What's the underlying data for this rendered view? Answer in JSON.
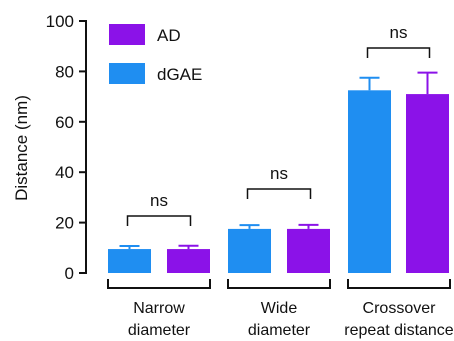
{
  "chart_data": {
    "type": "bar",
    "ylabel": "Distance  (nm)",
    "ylim": [
      0,
      100
    ],
    "yticks": [
      0,
      20,
      40,
      60,
      80,
      100
    ],
    "categories": [
      {
        "line1": "Narrow",
        "line2": "diameter"
      },
      {
        "line1": "Wide",
        "line2": "diameter"
      },
      {
        "line1": "Crossover",
        "line2": "repeat distance"
      }
    ],
    "series": [
      {
        "name": "dGAE",
        "color": "#1f8ef1",
        "values": [
          9.5,
          17.5,
          72.5
        ],
        "errors": [
          1.2,
          1.5,
          5.0
        ]
      },
      {
        "name": "AD",
        "color": "#8b12e8",
        "values": [
          9.5,
          17.5,
          71.0
        ],
        "errors": [
          1.3,
          1.6,
          8.5
        ]
      }
    ],
    "legend": {
      "placement": "top-left",
      "order": [
        "AD",
        "dGAE"
      ]
    },
    "annotations": [
      "ns",
      "ns",
      "ns"
    ],
    "grid": false
  }
}
